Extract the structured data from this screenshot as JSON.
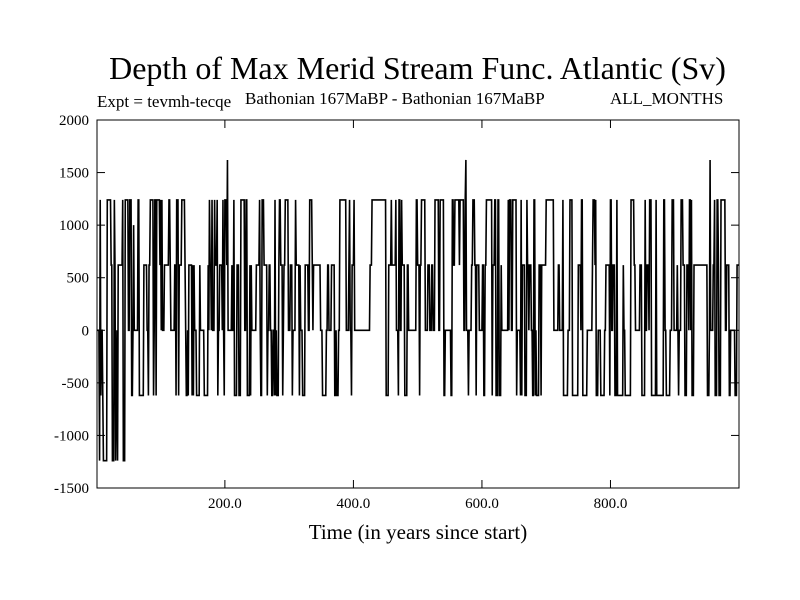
{
  "chart_data": {
    "type": "line",
    "title": "Depth of Max Merid Stream Func. Atlantic (Sv)",
    "subtitle_left": "Expt = tevmh-tecqe",
    "subtitle_center": "Bathonian 167MaBP - Bathonian 167MaBP",
    "subtitle_right": "ALL_MONTHS",
    "xlabel": "Time (in years since start)",
    "ylabel": "",
    "xlim": [
      1,
      1000
    ],
    "ylim": [
      -1500,
      2000
    ],
    "x_ticks": [
      200,
      400,
      600,
      800
    ],
    "x_tick_labels": [
      "200.0",
      "400.0",
      "600.0",
      "800.0"
    ],
    "y_ticks": [
      -1500,
      -1000,
      -500,
      0,
      500,
      1000,
      1500,
      2000
    ],
    "y_tick_labels": [
      "-1500",
      "-1000",
      "-500",
      "0",
      "500",
      "1000",
      "1500",
      "2000"
    ],
    "levels": [
      -1240,
      -620,
      0,
      620,
      1240
    ],
    "peaks": [
      [
        58,
        1000
      ],
      [
        204,
        1620
      ],
      [
        575,
        1620
      ],
      [
        955,
        1620
      ]
    ],
    "troughs": [
      [
        5,
        -1240
      ],
      [
        11,
        -1240
      ],
      [
        30,
        -1240
      ],
      [
        58,
        -1240
      ]
    ],
    "series": [
      {
        "color": "#000000",
        "x_start": 1,
        "x_end": 1000,
        "x_step": 1
      }
    ]
  }
}
